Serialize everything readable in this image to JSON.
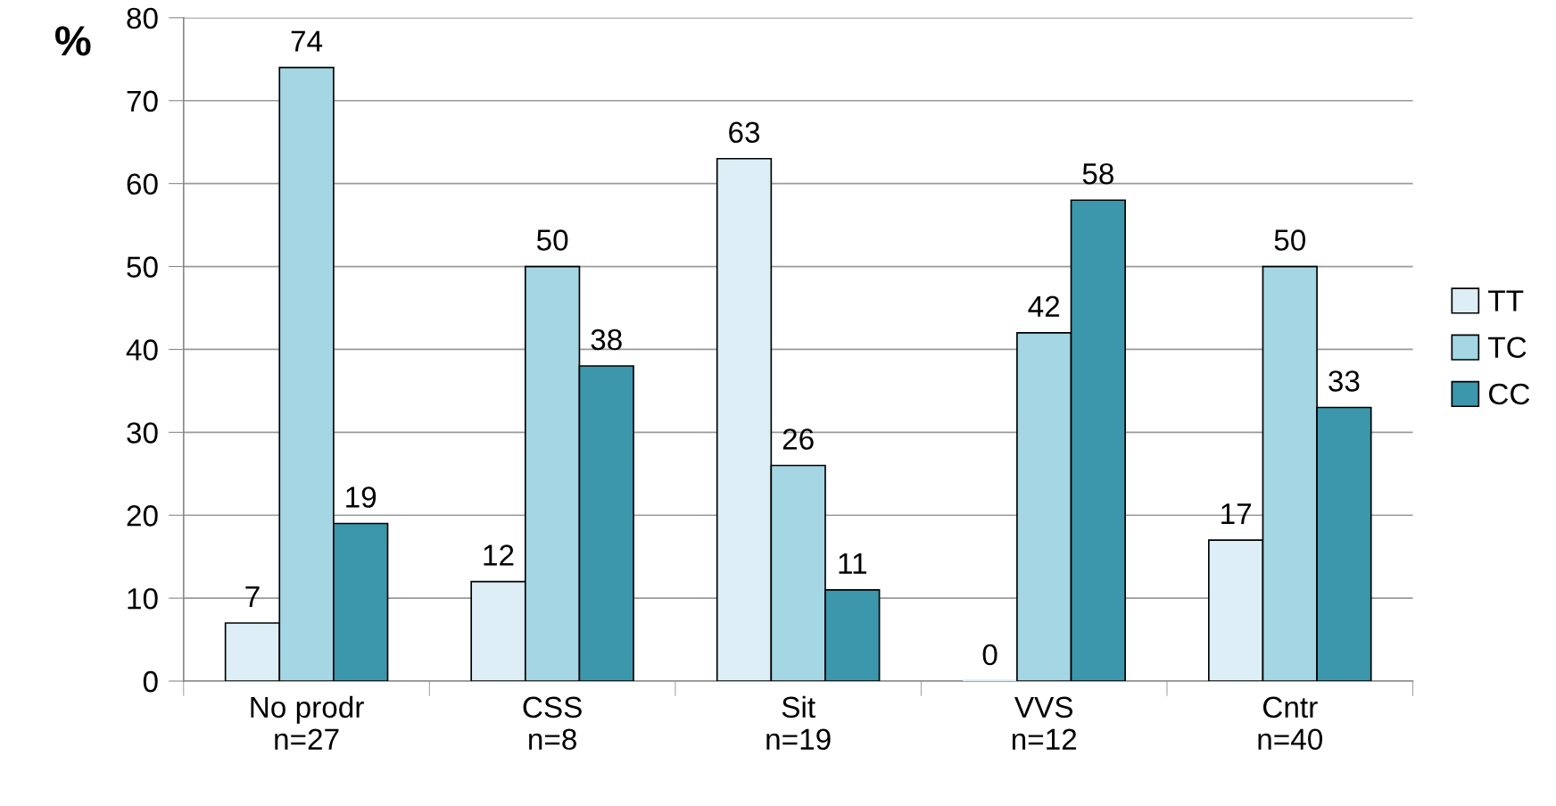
{
  "chart_data": {
    "type": "bar",
    "ylabel": "%",
    "categories": [
      "No prodr\nn=27",
      "CSS\nn=8",
      "Sit\nn=19",
      "VVS\nn=12",
      "Cntr\nn=40"
    ],
    "series": [
      {
        "name": "TT",
        "color": "#deeef6",
        "values": [
          7,
          12,
          63,
          0,
          17
        ]
      },
      {
        "name": "TC",
        "color": "#a5d6e4",
        "values": [
          74,
          50,
          26,
          42,
          50
        ]
      },
      {
        "name": "CC",
        "color": "#3c97ac",
        "values": [
          19,
          38,
          11,
          58,
          33
        ]
      }
    ],
    "ylim": [
      0,
      80
    ],
    "yticks": [
      0,
      10,
      20,
      30,
      40,
      50,
      60,
      70,
      80
    ],
    "grid": "y",
    "legend": "right",
    "data_labels": true
  }
}
